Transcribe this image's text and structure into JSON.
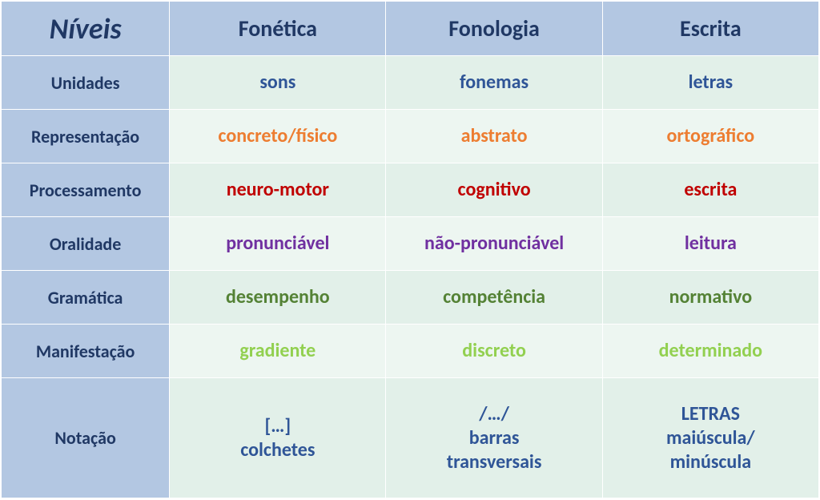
{
  "table": {
    "corner_label": "Níveis",
    "columns": [
      "Fonética",
      "Fonologia",
      "Escrita"
    ],
    "header_bg": "#b3c7e2",
    "header_text_color": "#203864",
    "row_bg_even": "#e2f0e9",
    "row_bg_odd": "#edf6f1",
    "label_bg": "#b3c7e2",
    "label_text_color": "#203864",
    "rows": [
      {
        "label": "Unidades",
        "color": "#2f5597",
        "cells": [
          "sons",
          "fonemas",
          "letras"
        ]
      },
      {
        "label": "Representação",
        "color": "#ed7d31",
        "cells": [
          "concreto/físico",
          "abstrato",
          "ortográfico"
        ]
      },
      {
        "label": "Processamento",
        "color": "#c00000",
        "cells": [
          "neuro-motor",
          "cognitivo",
          "escrita"
        ]
      },
      {
        "label": "Oralidade",
        "color": "#7030a0",
        "cells": [
          "pronunciável",
          "não-pronunciável",
          "leitura"
        ]
      },
      {
        "label": "Gramática",
        "color": "#548235",
        "cells": [
          "desempenho",
          "competência",
          "normativo"
        ]
      },
      {
        "label": "Manifestação",
        "color": "#92d050",
        "cells": [
          "gradiente",
          "discreto",
          "determinado"
        ]
      },
      {
        "label": "Notação",
        "color": "#2f5597",
        "cells": [
          "[…]\ncolchetes",
          "/…/\nbarras\ntransversais",
          "LETRAS\nmaiúscula/\nminúscula"
        ]
      }
    ]
  }
}
